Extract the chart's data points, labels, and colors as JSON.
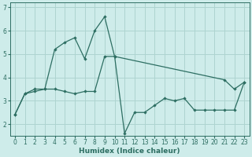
{
  "xlabel": "Humidex (Indice chaleur)",
  "xlim": [
    -0.5,
    23.5
  ],
  "ylim": [
    1.5,
    7.2
  ],
  "xticks": [
    0,
    1,
    2,
    3,
    4,
    5,
    6,
    7,
    8,
    9,
    10,
    11,
    12,
    13,
    14,
    15,
    16,
    17,
    18,
    19,
    20,
    21,
    22,
    23
  ],
  "yticks": [
    2,
    3,
    4,
    5,
    6,
    7
  ],
  "bg_color": "#ceecea",
  "grid_color": "#aed4d0",
  "line_color": "#2d6e62",
  "line1_x": [
    0,
    1,
    2,
    3,
    4,
    5,
    6,
    7,
    8,
    9,
    10,
    21,
    22,
    23
  ],
  "line1_y": [
    2.4,
    3.3,
    3.5,
    3.5,
    5.2,
    5.5,
    5.7,
    4.8,
    6.0,
    6.6,
    4.9,
    3.9,
    3.5,
    3.8
  ],
  "line2_x": [
    0,
    1,
    2,
    3,
    4,
    5,
    6,
    7,
    8,
    9,
    10,
    11,
    12,
    13,
    14,
    15,
    16,
    17,
    18,
    19,
    20,
    21,
    22,
    23
  ],
  "line2_y": [
    2.4,
    3.3,
    3.4,
    3.5,
    3.5,
    3.4,
    3.3,
    3.4,
    3.4,
    4.9,
    4.9,
    1.6,
    2.5,
    2.5,
    2.8,
    3.1,
    3.0,
    3.1,
    2.6,
    2.6,
    2.6,
    2.6,
    2.6,
    3.8
  ]
}
